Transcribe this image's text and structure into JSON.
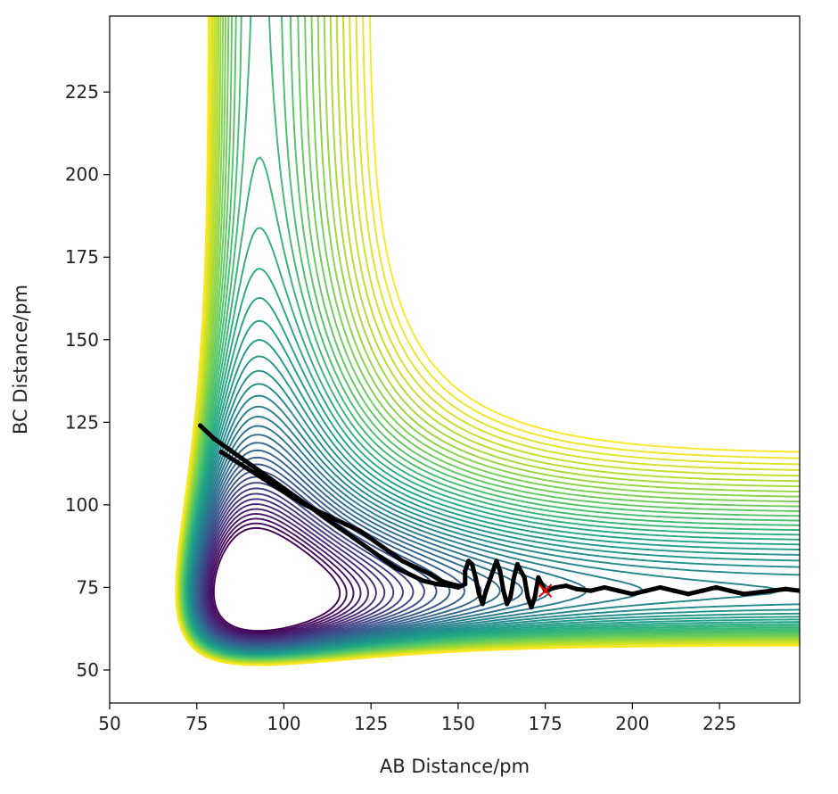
{
  "chart_data": {
    "type": "line",
    "title": "",
    "xlabel": "AB Distance/pm",
    "ylabel": "BC Distance/pm",
    "xlim": [
      50,
      248
    ],
    "ylim": [
      40,
      248
    ],
    "grid": false,
    "x_ticks": [
      "50",
      "75",
      "100",
      "125",
      "150",
      "175",
      "200",
      "225"
    ],
    "y_ticks": [
      "50",
      "75",
      "100",
      "125",
      "150",
      "175",
      "200",
      "225"
    ],
    "colors": {
      "trajectory": "#000000",
      "final_marker": "#ff0000",
      "colormap_low": "#440154",
      "colormap_mid": "#21918c",
      "colormap_high": "#fde725"
    },
    "contours": {
      "description_free": true,
      "low_level_minima_y": [
        140,
        120,
        106
      ],
      "count": 45
    },
    "series": [
      {
        "kind": "trajectory",
        "x": [
          76,
          80,
          84,
          88,
          92,
          96,
          100,
          104,
          108,
          112,
          116,
          120,
          124,
          128,
          132,
          136,
          140,
          144,
          148,
          150,
          152,
          152,
          153,
          154,
          155,
          156,
          157,
          158,
          160,
          161,
          162,
          163,
          164,
          165,
          166,
          167,
          169,
          170,
          171,
          172,
          173,
          174,
          175,
          178,
          181,
          184,
          188,
          192,
          196,
          200,
          204,
          208,
          212,
          216,
          220,
          224,
          228,
          232,
          236,
          240,
          244,
          248
        ],
        "y": [
          124,
          120,
          117,
          114,
          111,
          108,
          105,
          102,
          99,
          96,
          93,
          90,
          87,
          84,
          81,
          79,
          77,
          76,
          75.5,
          75,
          76,
          80,
          83,
          82,
          78,
          73,
          70,
          74,
          80,
          83,
          80,
          74,
          70,
          72,
          78,
          82,
          78,
          72,
          69,
          72,
          78,
          76,
          74,
          75,
          75.5,
          74.5,
          74,
          75,
          74,
          73,
          74,
          75,
          74,
          73,
          74,
          75,
          74,
          73,
          73.5,
          74,
          74.5,
          74
        ]
      },
      {
        "kind": "trajectory-upper",
        "x": [
          82,
          88,
          94,
          100,
          106,
          112,
          118,
          122,
          126,
          130,
          134,
          138,
          142,
          145,
          148,
          150
        ],
        "y": [
          116,
          112,
          108,
          104,
          100,
          97,
          94,
          92,
          89,
          86,
          83,
          81,
          79,
          77,
          76,
          75.5
        ]
      }
    ],
    "final_point": {
      "x": 175,
      "y": 74,
      "marker": "x"
    }
  }
}
